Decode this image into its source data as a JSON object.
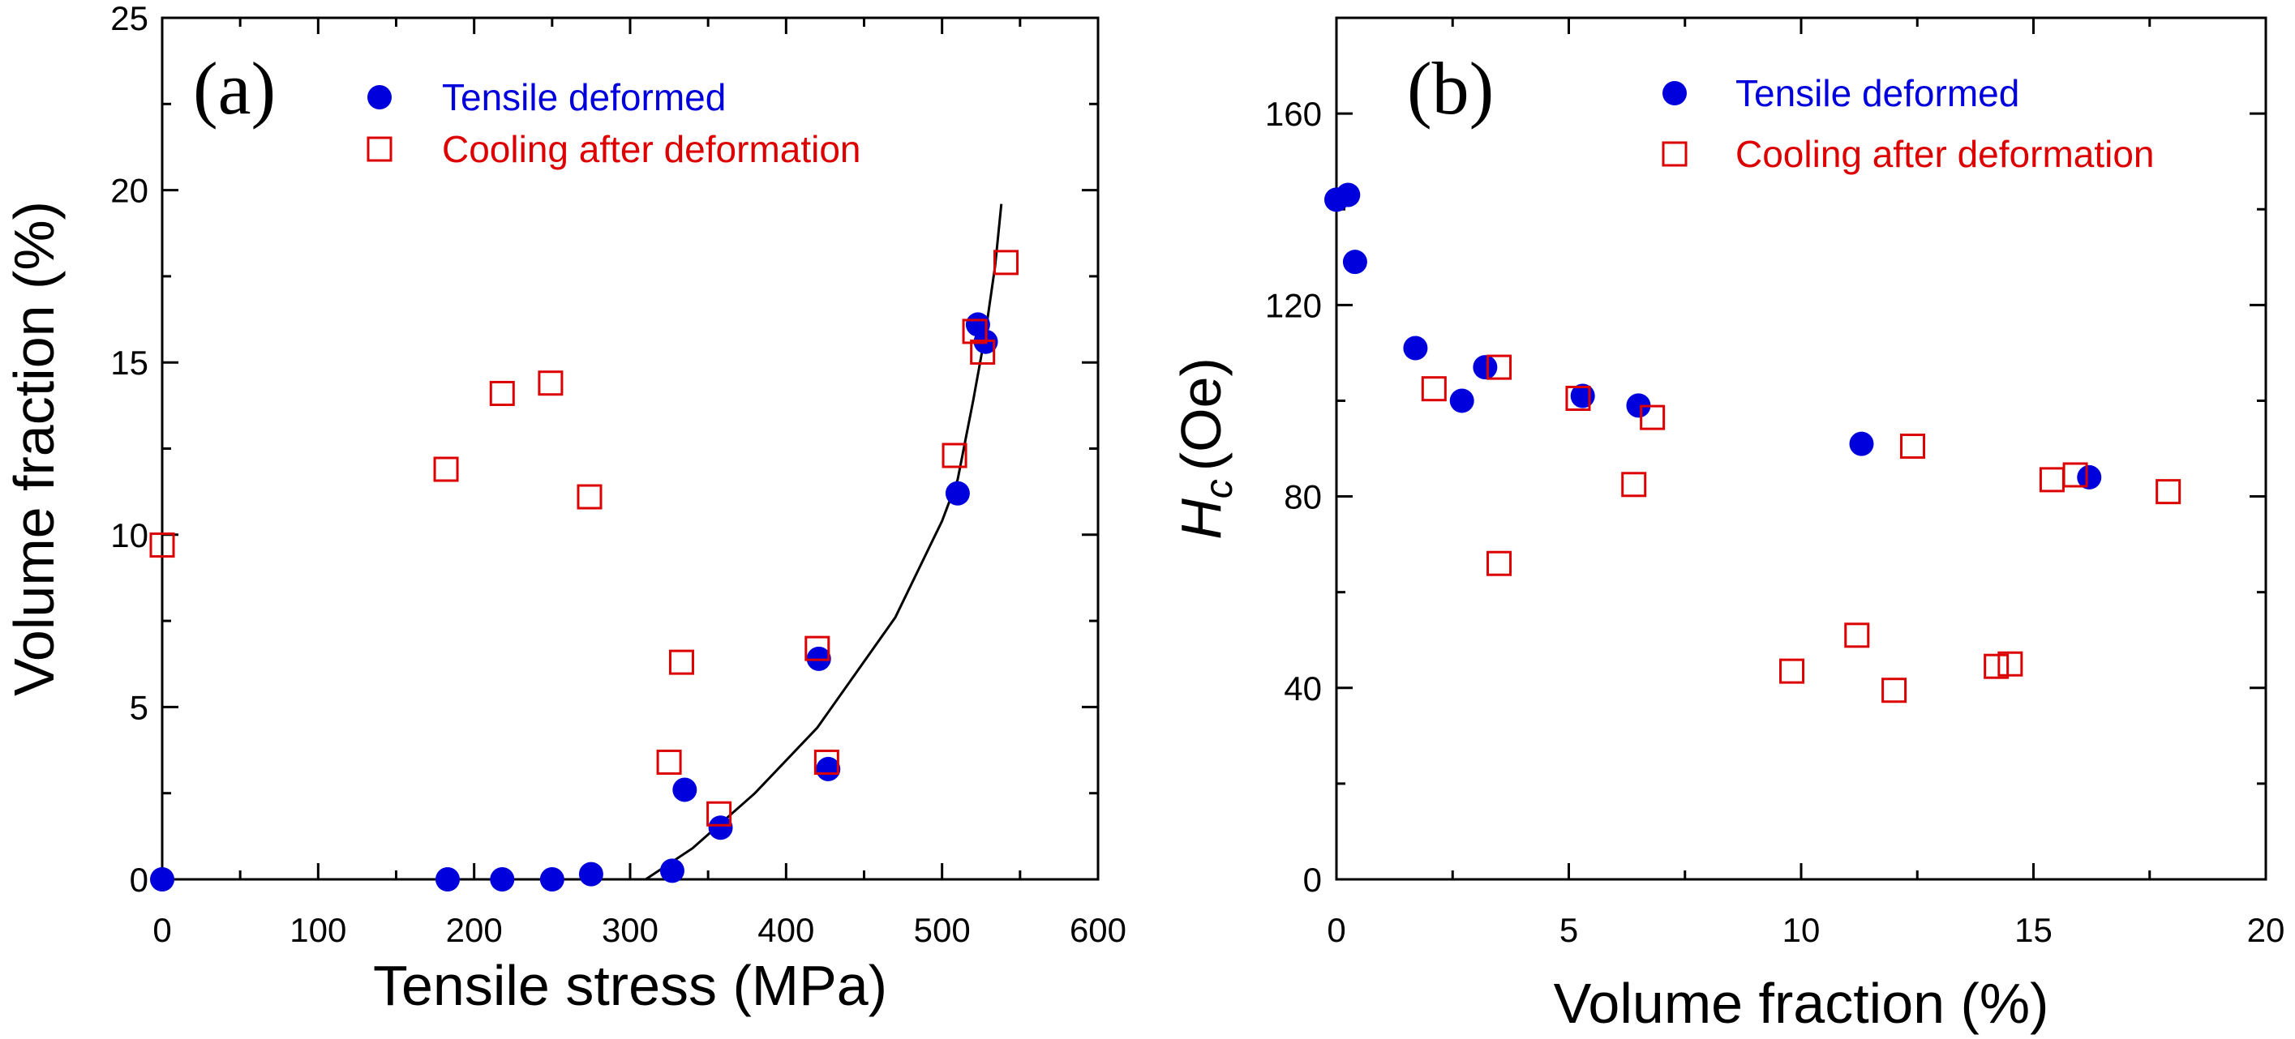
{
  "chart_data": [
    {
      "type": "scatter",
      "panel_label": "(a)",
      "xlabel": "Tensile stress (MPa)",
      "ylabel": "Volume fraction (%)",
      "xlim": [
        0,
        600
      ],
      "ylim": [
        0,
        25
      ],
      "xticks": [
        0,
        100,
        200,
        300,
        400,
        500,
        600
      ],
      "yticks": [
        0,
        5,
        10,
        15,
        20,
        25
      ],
      "xtick_labels": [
        "0",
        "100",
        "200",
        "300",
        "400",
        "500",
        "600"
      ],
      "ytick_labels": [
        "0",
        "5",
        "10",
        "15",
        "20",
        "25"
      ],
      "legend_position": "top-center",
      "series": [
        {
          "name": "Tensile deformed",
          "marker": "filled-circle",
          "color": "#0000dd",
          "points": [
            [
              0,
              0
            ],
            [
              183,
              0
            ],
            [
              218,
              0
            ],
            [
              250,
              0
            ],
            [
              275,
              0.15
            ],
            [
              327,
              0.25
            ],
            [
              335,
              2.6
            ],
            [
              358,
              1.5
            ],
            [
              421,
              6.4
            ],
            [
              427,
              3.2
            ],
            [
              510,
              11.2
            ],
            [
              523,
              16.1
            ],
            [
              528,
              15.6
            ]
          ]
        },
        {
          "name": "Cooling after deformation",
          "marker": "open-square",
          "color": "#dd0000",
          "points": [
            [
              0,
              9.7
            ],
            [
              182,
              11.9
            ],
            [
              218,
              14.1
            ],
            [
              249,
              14.4
            ],
            [
              274,
              11.1
            ],
            [
              325,
              3.4
            ],
            [
              333,
              6.3
            ],
            [
              357,
              1.9
            ],
            [
              420,
              6.7
            ],
            [
              426,
              3.4
            ],
            [
              508,
              12.3
            ],
            [
              521,
              15.9
            ],
            [
              526,
              15.3
            ],
            [
              541,
              17.9
            ]
          ]
        },
        {
          "name": "fit",
          "marker": "line",
          "color": "#000000",
          "points": [
            [
              310,
              0
            ],
            [
              340,
              0.9
            ],
            [
              380,
              2.5
            ],
            [
              420,
              4.4
            ],
            [
              470,
              7.6
            ],
            [
              500,
              10.4
            ],
            [
              510,
              11.6
            ],
            [
              520,
              13.9
            ],
            [
              528,
              15.9
            ],
            [
              534,
              17.8
            ],
            [
              538,
              19.6
            ]
          ]
        }
      ]
    },
    {
      "type": "scatter",
      "panel_label": "(b)",
      "xlabel": "Volume fraction (%)",
      "ylabel_symbol": "H",
      "ylabel_subscript": "c",
      "ylabel_unit": "(Oe)",
      "xlim": [
        0,
        20
      ],
      "ylim": [
        0,
        180
      ],
      "xticks": [
        0,
        5,
        10,
        15,
        20
      ],
      "yticks": [
        0,
        40,
        80,
        120,
        160
      ],
      "xtick_labels": [
        "0",
        "5",
        "10",
        "15",
        "20"
      ],
      "ytick_labels": [
        "0",
        "40",
        "80",
        "120",
        "160"
      ],
      "legend_position": "top-center",
      "series": [
        {
          "name": "Tensile deformed",
          "marker": "filled-circle",
          "color": "#0000dd",
          "points": [
            [
              0,
              142
            ],
            [
              0.25,
              143
            ],
            [
              0.4,
              129
            ],
            [
              1.7,
              111
            ],
            [
              2.7,
              100
            ],
            [
              3.2,
              107
            ],
            [
              5.3,
              101
            ],
            [
              6.5,
              99
            ],
            [
              11.3,
              91
            ],
            [
              16.2,
              84
            ]
          ]
        },
        {
          "name": "Cooling after deformation",
          "marker": "open-square",
          "color": "#dd0000",
          "points": [
            [
              2.1,
              102.5
            ],
            [
              3.5,
              107
            ],
            [
              3.5,
              66
            ],
            [
              5.2,
              100.5
            ],
            [
              6.4,
              82.5
            ],
            [
              6.8,
              96.5
            ],
            [
              9.8,
              43.5
            ],
            [
              11.2,
              51
            ],
            [
              12.0,
              39.5
            ],
            [
              12.4,
              90.5
            ],
            [
              14.2,
              44.5
            ],
            [
              14.5,
              45
            ],
            [
              15.4,
              83.5
            ],
            [
              15.9,
              84.5
            ],
            [
              17.9,
              81
            ]
          ]
        }
      ]
    }
  ]
}
